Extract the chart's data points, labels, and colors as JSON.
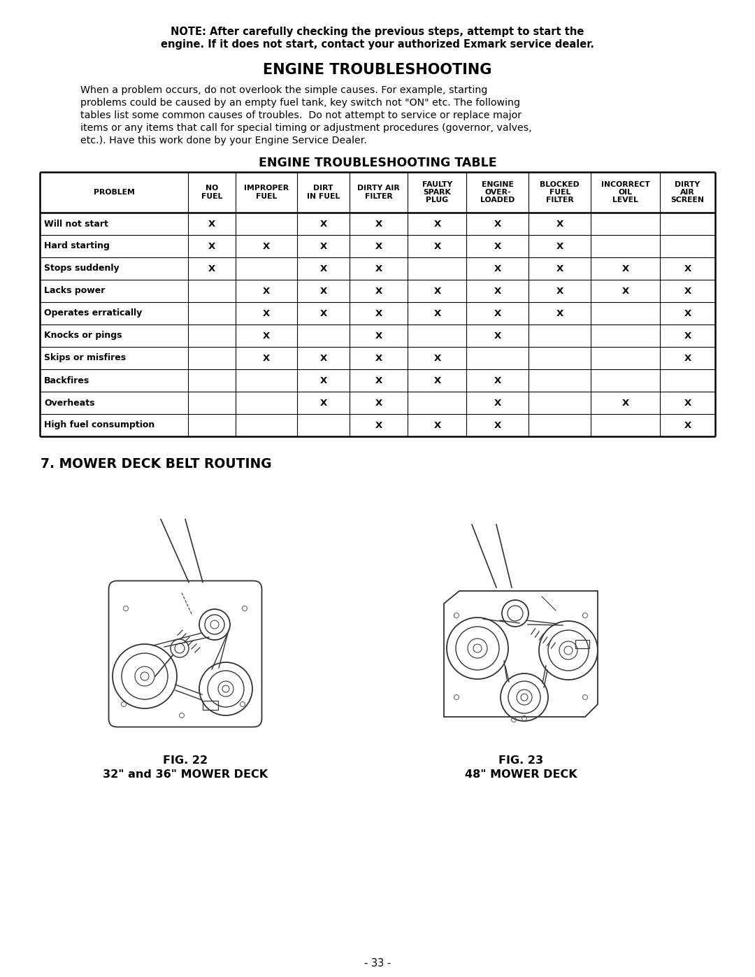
{
  "note_text_line1": "NOTE: After carefully checking the previous steps, attempt to start the",
  "note_text_line2": "engine. If it does not start, contact your authorized Exmark service dealer.",
  "section_title": "ENGINE TROUBLESHOOTING",
  "body_text_lines": [
    "When a problem occurs, do not overlook the simple causes. For example, starting",
    "problems could be caused by an empty fuel tank, key switch not \"ON\" etc. The following",
    "tables list some common causes of troubles.  Do not attempt to service or replace major",
    "items or any items that call for special timing or adjustment procedures (governor, valves,",
    "etc.). Have this work done by your Engine Service Dealer."
  ],
  "table_title": "ENGINE TROUBLESHOOTING TABLE",
  "col_headers": [
    "PROBLEM",
    "NO\nFUEL",
    "IMPROPER\nFUEL",
    "DIRT\nIN FUEL",
    "DIRTY AIR\nFILTER",
    "FAULTY\nSPARK\nPLUG",
    "ENGINE\nOVER-\nLOADED",
    "BLOCKED\nFUEL\nFILTER",
    "INCORRECT\nOIL\nLEVEL",
    "DIRTY\nAIR\nSCREEN"
  ],
  "rows": [
    [
      "Will not start",
      "X",
      "",
      "X",
      "X",
      "X",
      "X",
      "X",
      "",
      ""
    ],
    [
      "Hard starting",
      "X",
      "X",
      "X",
      "X",
      "X",
      "X",
      "X",
      "",
      ""
    ],
    [
      "Stops suddenly",
      "X",
      "",
      "X",
      "X",
      "",
      "X",
      "X",
      "X",
      "X"
    ],
    [
      "Lacks power",
      "",
      "X",
      "X",
      "X",
      "X",
      "X",
      "X",
      "X",
      "X"
    ],
    [
      "Operates erratically",
      "",
      "X",
      "X",
      "X",
      "X",
      "X",
      "X",
      "",
      "X"
    ],
    [
      "Knocks or pings",
      "",
      "X",
      "",
      "X",
      "",
      "X",
      "",
      "",
      "X"
    ],
    [
      "Skips or misfires",
      "",
      "X",
      "X",
      "X",
      "X",
      "",
      "",
      "",
      "X"
    ],
    [
      "Backfires",
      "",
      "",
      "X",
      "X",
      "X",
      "X",
      "",
      "",
      ""
    ],
    [
      "Overheats",
      "",
      "",
      "X",
      "X",
      "",
      "X",
      "",
      "X",
      "X"
    ],
    [
      "High fuel consumption",
      "",
      "",
      "",
      "X",
      "X",
      "X",
      "",
      "",
      "X"
    ]
  ],
  "mower_section_title": "7. MOWER DECK BELT ROUTING",
  "fig22_caption_line1": "FIG. 22",
  "fig22_caption_line2": "32\" and 36\" MOWER DECK",
  "fig23_caption_line1": "FIG. 23",
  "fig23_caption_line2": "48\" MOWER DECK",
  "page_number": "- 33 -",
  "bg_color": "#ffffff",
  "text_color": "#000000"
}
